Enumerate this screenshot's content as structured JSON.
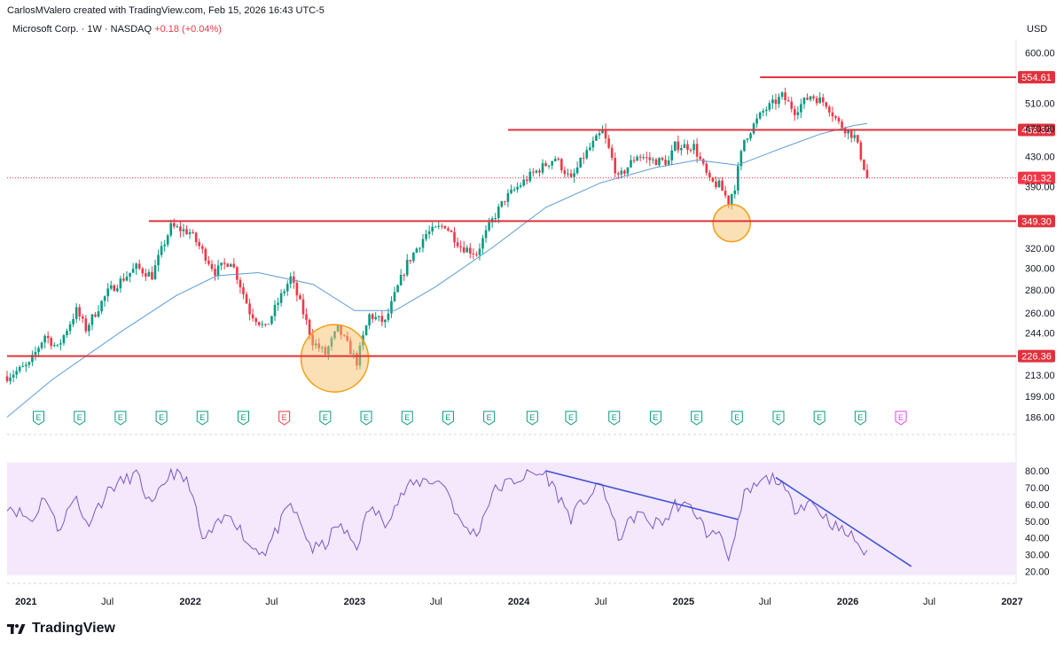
{
  "header": {
    "credit": "CarlosMValero created with TradingView.com, Feb 15, 2026 16:43 UTC-5",
    "symbol": "Microsoft Corp. · 1W · NASDAQ",
    "change": "+0.18 (+0.04%)",
    "currency": "USD"
  },
  "brand": {
    "name": "TradingView",
    "icon": "tradingview-logo-icon"
  },
  "colors": {
    "up": "#089981",
    "down": "#f23645",
    "ma": "#5b9bd5",
    "level": "#e0323c",
    "rsi_line": "#7e57c2",
    "rsi_bg": "#f3e8fc",
    "trend": "#3f51d8",
    "circle_fill": "#f7c26b",
    "circle_stroke": "#f39c12",
    "earnings": "#089981",
    "earnings_alt": "#f23645",
    "earnings_future": "#e040fb"
  },
  "chart_data": [
    {
      "type": "candlestick",
      "title": "Microsoft Corp. · 1W · NASDAQ",
      "y_scale": "log",
      "ylim": [
        180,
        620
      ],
      "xlim": [
        "2020-11-20",
        "2027-01-10"
      ],
      "y_ticks": [
        "600.00",
        "510.00",
        "470.00",
        "430.00",
        "390.00",
        "320.00",
        "300.00",
        "280.00",
        "260.00",
        "244.00",
        "213.00",
        "199.00",
        "186.00"
      ],
      "x_ticks": [
        {
          "date": "2021-01-01",
          "label": "2021",
          "bold": true
        },
        {
          "date": "2021-07-01",
          "label": "Jul",
          "bold": false
        },
        {
          "date": "2022-01-01",
          "label": "2022",
          "bold": true
        },
        {
          "date": "2022-07-01",
          "label": "Jul",
          "bold": false
        },
        {
          "date": "2023-01-01",
          "label": "2023",
          "bold": true
        },
        {
          "date": "2023-07-01",
          "label": "Jul",
          "bold": false
        },
        {
          "date": "2024-01-01",
          "label": "2024",
          "bold": true
        },
        {
          "date": "2024-07-01",
          "label": "Jul",
          "bold": false
        },
        {
          "date": "2025-01-01",
          "label": "2025",
          "bold": true
        },
        {
          "date": "2025-07-01",
          "label": "Jul",
          "bold": false
        },
        {
          "date": "2026-01-01",
          "label": "2026",
          "bold": true
        },
        {
          "date": "2026-07-01",
          "label": "Jul",
          "bold": false
        },
        {
          "date": "2027-01-01",
          "label": "2027",
          "bold": true
        }
      ],
      "price_path": [
        [
          "2020-11-20",
          212
        ],
        [
          "2021-01-08",
          220
        ],
        [
          "2021-02-12",
          242
        ],
        [
          "2021-03-12",
          232
        ],
        [
          "2021-04-23",
          262
        ],
        [
          "2021-05-14",
          247
        ],
        [
          "2021-07-02",
          278
        ],
        [
          "2021-09-03",
          301
        ],
        [
          "2021-10-08",
          293
        ],
        [
          "2021-11-19",
          343
        ],
        [
          "2021-12-31",
          337
        ],
        [
          "2022-02-25",
          297
        ],
        [
          "2022-04-01",
          308
        ],
        [
          "2022-05-13",
          261
        ],
        [
          "2022-06-17",
          247
        ],
        [
          "2022-08-12",
          291
        ],
        [
          "2022-09-30",
          237
        ],
        [
          "2022-10-28",
          228
        ],
        [
          "2022-11-25",
          247
        ],
        [
          "2023-01-06",
          222
        ],
        [
          "2023-02-03",
          258
        ],
        [
          "2023-03-10",
          252
        ],
        [
          "2023-04-28",
          305
        ],
        [
          "2023-06-09",
          335
        ],
        [
          "2023-07-21",
          345
        ],
        [
          "2023-08-25",
          322
        ],
        [
          "2023-09-29",
          315
        ],
        [
          "2023-11-03",
          350
        ],
        [
          "2023-12-01",
          375
        ],
        [
          "2024-01-26",
          404
        ],
        [
          "2024-03-22",
          428
        ],
        [
          "2024-04-26",
          398
        ],
        [
          "2024-05-24",
          430
        ],
        [
          "2024-07-05",
          466
        ],
        [
          "2024-08-09",
          400
        ],
        [
          "2024-09-20",
          432
        ],
        [
          "2024-10-25",
          424
        ],
        [
          "2024-11-29",
          423
        ],
        [
          "2024-12-13",
          445
        ],
        [
          "2025-01-24",
          444
        ],
        [
          "2025-02-28",
          396
        ],
        [
          "2025-03-21",
          392
        ],
        [
          "2025-04-11",
          372
        ],
        [
          "2025-04-25",
          391
        ],
        [
          "2025-05-16",
          454
        ],
        [
          "2025-06-27",
          497
        ],
        [
          "2025-07-25",
          513
        ],
        [
          "2025-08-08",
          522
        ],
        [
          "2025-09-05",
          498
        ],
        [
          "2025-10-10",
          523
        ],
        [
          "2025-11-14",
          510
        ],
        [
          "2025-12-12",
          478
        ],
        [
          "2026-01-16",
          458
        ],
        [
          "2026-01-30",
          430
        ],
        [
          "2026-02-13",
          401.32
        ]
      ],
      "ma_path": [
        [
          "2020-11-20",
          186
        ],
        [
          "2021-03-01",
          210
        ],
        [
          "2021-08-01",
          245
        ],
        [
          "2021-12-01",
          275
        ],
        [
          "2022-03-01",
          293
        ],
        [
          "2022-06-01",
          296
        ],
        [
          "2022-10-01",
          285
        ],
        [
          "2023-01-01",
          262
        ],
        [
          "2023-04-01",
          262
        ],
        [
          "2023-07-01",
          283
        ],
        [
          "2023-11-01",
          320
        ],
        [
          "2024-03-01",
          365
        ],
        [
          "2024-07-01",
          395
        ],
        [
          "2024-11-01",
          415
        ],
        [
          "2025-02-01",
          425
        ],
        [
          "2025-05-01",
          418
        ],
        [
          "2025-08-01",
          440
        ],
        [
          "2025-11-01",
          462
        ],
        [
          "2026-01-15",
          475
        ],
        [
          "2026-02-13",
          478
        ]
      ],
      "levels": [
        {
          "value": 554.61,
          "label": "554.61",
          "from": "2025-06-20"
        },
        {
          "value": 468.33,
          "label": "468.33",
          "from": "2023-12-08"
        },
        {
          "value": 349.3,
          "label": "349.30",
          "from": "2021-10-01"
        },
        {
          "value": 226.36,
          "label": "226.36",
          "from": "2020-11-20"
        }
      ],
      "last_price": {
        "value": 401.32,
        "label": "401.32"
      },
      "highlight_circles": [
        {
          "date": "2022-11-18",
          "value": 226,
          "name": "support-circle-2022"
        },
        {
          "date": "2025-04-18",
          "value": 349,
          "name": "support-circle-2025"
        }
      ],
      "earnings_markers": [
        {
          "date": "2021-01-29",
          "label": "E",
          "kind": "normal"
        },
        {
          "date": "2021-04-30",
          "label": "E",
          "kind": "normal"
        },
        {
          "date": "2021-07-30",
          "label": "E",
          "kind": "normal"
        },
        {
          "date": "2021-10-29",
          "label": "E",
          "kind": "normal"
        },
        {
          "date": "2022-01-28",
          "label": "E",
          "kind": "normal"
        },
        {
          "date": "2022-04-29",
          "label": "E",
          "kind": "normal"
        },
        {
          "date": "2022-07-29",
          "label": "E",
          "kind": "miss"
        },
        {
          "date": "2022-10-28",
          "label": "E",
          "kind": "normal"
        },
        {
          "date": "2023-01-27",
          "label": "E",
          "kind": "normal"
        },
        {
          "date": "2023-04-28",
          "label": "E",
          "kind": "normal"
        },
        {
          "date": "2023-07-28",
          "label": "E",
          "kind": "normal"
        },
        {
          "date": "2023-10-27",
          "label": "E",
          "kind": "normal"
        },
        {
          "date": "2024-01-31",
          "label": "E",
          "kind": "normal"
        },
        {
          "date": "2024-04-26",
          "label": "E",
          "kind": "normal"
        },
        {
          "date": "2024-07-31",
          "label": "E",
          "kind": "normal"
        },
        {
          "date": "2024-10-31",
          "label": "E",
          "kind": "normal"
        },
        {
          "date": "2025-01-30",
          "label": "E",
          "kind": "normal"
        },
        {
          "date": "2025-04-30",
          "label": "E",
          "kind": "normal"
        },
        {
          "date": "2025-07-31",
          "label": "E",
          "kind": "normal"
        },
        {
          "date": "2025-10-30",
          "label": "E",
          "kind": "normal"
        },
        {
          "date": "2026-01-29",
          "label": "E",
          "kind": "normal"
        },
        {
          "date": "2026-04-29",
          "label": "E",
          "kind": "future"
        }
      ]
    },
    {
      "type": "line",
      "ylim": [
        15,
        85
      ],
      "y_ticks": [
        "80.00",
        "70.00",
        "60.00",
        "50.00",
        "40.00",
        "30.00",
        "20.00"
      ],
      "band": [
        30,
        85
      ],
      "rsi_path": [
        [
          "2020-11-20",
          60
        ],
        [
          "2021-01-15",
          50
        ],
        [
          "2021-02-12",
          66
        ],
        [
          "2021-03-12",
          45
        ],
        [
          "2021-04-23",
          65
        ],
        [
          "2021-05-14",
          48
        ],
        [
          "2021-07-09",
          70
        ],
        [
          "2021-09-03",
          78
        ],
        [
          "2021-10-08",
          58
        ],
        [
          "2021-11-19",
          80
        ],
        [
          "2021-12-31",
          72
        ],
        [
          "2022-01-28",
          38
        ],
        [
          "2022-04-01",
          55
        ],
        [
          "2022-05-13",
          35
        ],
        [
          "2022-06-17",
          32
        ],
        [
          "2022-08-12",
          60
        ],
        [
          "2022-09-30",
          33
        ],
        [
          "2022-10-28",
          36
        ],
        [
          "2022-11-25",
          48
        ],
        [
          "2023-01-06",
          35
        ],
        [
          "2023-02-03",
          58
        ],
        [
          "2023-03-10",
          50
        ],
        [
          "2023-04-28",
          70
        ],
        [
          "2023-06-09",
          75
        ],
        [
          "2023-07-21",
          72
        ],
        [
          "2023-08-25",
          48
        ],
        [
          "2023-09-29",
          42
        ],
        [
          "2023-11-03",
          67
        ],
        [
          "2023-12-01",
          72
        ],
        [
          "2024-01-26",
          78
        ],
        [
          "2024-03-01",
          78
        ],
        [
          "2024-04-26",
          52
        ],
        [
          "2024-05-24",
          62
        ],
        [
          "2024-07-05",
          72
        ],
        [
          "2024-08-09",
          40
        ],
        [
          "2024-09-20",
          55
        ],
        [
          "2024-10-25",
          48
        ],
        [
          "2024-11-29",
          52
        ],
        [
          "2024-12-13",
          60
        ],
        [
          "2025-01-24",
          57
        ],
        [
          "2025-02-28",
          40
        ],
        [
          "2025-03-21",
          45
        ],
        [
          "2025-04-11",
          30
        ],
        [
          "2025-04-25",
          38
        ],
        [
          "2025-05-16",
          65
        ],
        [
          "2025-06-27",
          74
        ],
        [
          "2025-07-25",
          76
        ],
        [
          "2025-08-08",
          70
        ],
        [
          "2025-09-05",
          58
        ],
        [
          "2025-10-10",
          62
        ],
        [
          "2025-11-14",
          52
        ],
        [
          "2025-12-12",
          45
        ],
        [
          "2026-01-16",
          40
        ],
        [
          "2026-01-30",
          34
        ],
        [
          "2026-02-13",
          29
        ]
      ],
      "trendlines": [
        {
          "from": [
            "2024-03-01",
            80
          ],
          "to": [
            "2025-05-02",
            51
          ],
          "name": "rsi-trendline-1"
        },
        {
          "from": [
            "2025-07-25",
            76
          ],
          "to": [
            "2026-05-22",
            23
          ],
          "name": "rsi-trendline-2"
        }
      ]
    }
  ]
}
